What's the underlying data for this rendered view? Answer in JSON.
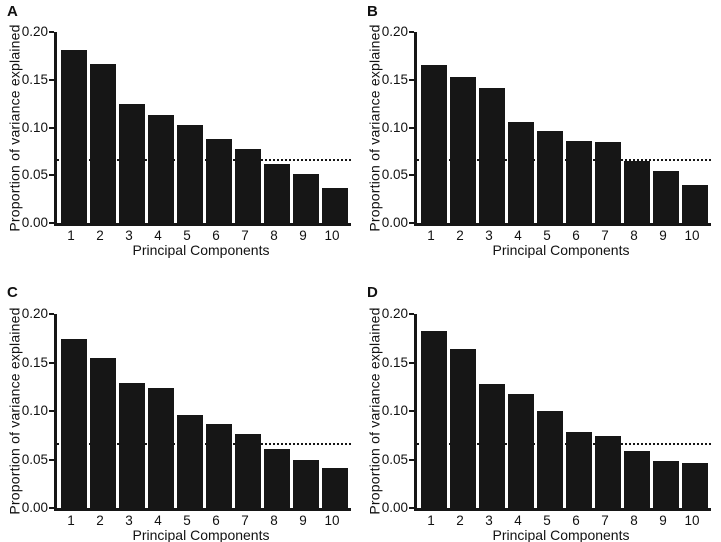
{
  "figure": {
    "background": "#ffffff",
    "bar_color": "#161616",
    "axis_color": "#161616",
    "text_color": "#111111"
  },
  "chart_data": [
    {
      "type": "bar",
      "panel_label": "A",
      "title": "",
      "xlabel": "Principal Components",
      "ylabel": "Proportion of variance explained",
      "categories": [
        "1",
        "2",
        "3",
        "4",
        "5",
        "6",
        "7",
        "8",
        "9",
        "10"
      ],
      "values": [
        0.181,
        0.166,
        0.125,
        0.113,
        0.103,
        0.088,
        0.078,
        0.062,
        0.051,
        0.037
      ],
      "ylim": [
        0,
        0.2
      ],
      "yticks": [
        "0.00",
        "0.05",
        "0.10",
        "0.15",
        "0.20"
      ],
      "threshold_line": 0.065,
      "grid": false,
      "legend": false
    },
    {
      "type": "bar",
      "panel_label": "B",
      "title": "",
      "xlabel": "Principal Components",
      "ylabel": "Proportion of variance explained",
      "categories": [
        "1",
        "2",
        "3",
        "4",
        "5",
        "6",
        "7",
        "8",
        "9",
        "10"
      ],
      "values": [
        0.165,
        0.153,
        0.141,
        0.106,
        0.096,
        0.086,
        0.085,
        0.065,
        0.054,
        0.04
      ],
      "ylim": [
        0,
        0.2
      ],
      "yticks": [
        "0.00",
        "0.05",
        "0.10",
        "0.15",
        "0.20"
      ],
      "threshold_line": 0.065,
      "grid": false,
      "legend": false
    },
    {
      "type": "bar",
      "panel_label": "C",
      "title": "",
      "xlabel": "Principal Components",
      "ylabel": "Proportion of variance explained",
      "categories": [
        "1",
        "2",
        "3",
        "4",
        "5",
        "6",
        "7",
        "8",
        "9",
        "10"
      ],
      "values": [
        0.174,
        0.155,
        0.129,
        0.124,
        0.096,
        0.087,
        0.076,
        0.061,
        0.05,
        0.041
      ],
      "ylim": [
        0,
        0.2
      ],
      "yticks": [
        "0.00",
        "0.05",
        "0.10",
        "0.15",
        "0.20"
      ],
      "threshold_line": 0.065,
      "grid": false,
      "legend": false
    },
    {
      "type": "bar",
      "panel_label": "D",
      "title": "",
      "xlabel": "Principal Components",
      "ylabel": "Proportion of variance explained",
      "categories": [
        "1",
        "2",
        "3",
        "4",
        "5",
        "6",
        "7",
        "8",
        "9",
        "10"
      ],
      "values": [
        0.182,
        0.164,
        0.128,
        0.118,
        0.1,
        0.078,
        0.074,
        0.059,
        0.048,
        0.046
      ],
      "ylim": [
        0,
        0.2
      ],
      "yticks": [
        "0.00",
        "0.05",
        "0.10",
        "0.15",
        "0.20"
      ],
      "threshold_line": 0.065,
      "grid": false,
      "legend": false
    }
  ]
}
